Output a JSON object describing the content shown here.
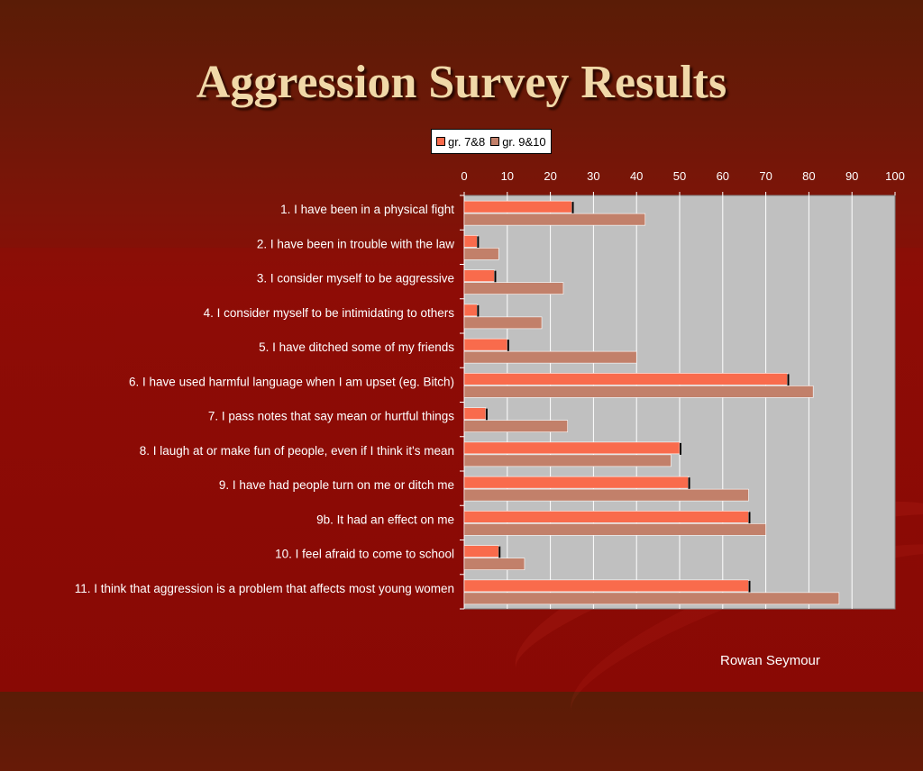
{
  "title": "Aggression Survey Results",
  "footer": "Rowan Seymour",
  "colors": {
    "series1": "#f96b4c",
    "series2": "#c2806a",
    "plot_bg": "#c0c0c0",
    "grid": "#ffffff"
  },
  "chart_data": {
    "type": "bar",
    "orientation": "horizontal",
    "categories": [
      "1. I have been in a physical fight",
      "2. I have been in trouble with the law",
      "3. I consider myself to be aggressive",
      "4. I consider myself to be intimidating to others",
      "5. I have ditched some of my friends",
      "6. I have used harmful language when I am upset (eg. Bitch)",
      "7. I pass notes that say mean or hurtful things",
      "8. I laugh at or make fun of people, even if I think it's mean",
      "9. I have had people turn on me or ditch me",
      "9b. It had an effect on me",
      "10. I feel afraid to come to school",
      "11. I think that aggression is a problem that affects most young women"
    ],
    "series": [
      {
        "name": "gr. 7&8",
        "values": [
          25,
          3,
          7,
          3,
          10,
          75,
          5,
          50,
          52,
          66,
          8,
          66
        ]
      },
      {
        "name": "gr. 9&10",
        "values": [
          42,
          8,
          23,
          18,
          40,
          81,
          24,
          48,
          66,
          70,
          14,
          87
        ]
      }
    ],
    "xlim": [
      0,
      100
    ],
    "xticks": [
      "0",
      "10",
      "20",
      "30",
      "40",
      "50",
      "60",
      "70",
      "80",
      "90",
      "100"
    ],
    "grid": true,
    "legend_position": "top"
  }
}
